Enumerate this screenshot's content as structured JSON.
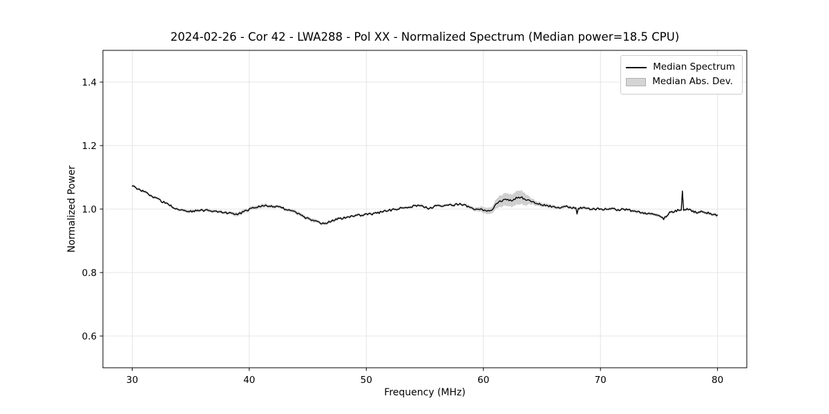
{
  "chart_data": {
    "type": "line",
    "title": "2024-02-26 - Cor 42 - LWA288 - Pol XX - Normalized Spectrum (Median power=18.5 CPU)",
    "xlabel": "Frequency (MHz)",
    "ylabel": "Normalized Power",
    "xlim": [
      27.5,
      82.5
    ],
    "ylim": [
      0.5,
      1.5
    ],
    "xticks": {
      "values": [
        30,
        40,
        50,
        60,
        70,
        80
      ],
      "labels": [
        "30",
        "40",
        "50",
        "60",
        "70",
        "80"
      ]
    },
    "yticks": {
      "values": [
        0.6,
        0.8,
        1.0,
        1.2,
        1.4
      ],
      "labels": [
        "0.6",
        "0.8",
        "1.0",
        "1.2",
        "1.4"
      ]
    },
    "grid": true,
    "background_color": "#ffffff",
    "grid_color": "#e4e4e4",
    "spine_color": "#000000",
    "legend": {
      "position": "upper right",
      "entries": [
        {
          "label": "Median Spectrum",
          "type": "line",
          "color": "#000000"
        },
        {
          "label": "Median Abs. Dev.",
          "type": "patch",
          "fill": "#d5d5d5",
          "edge": "#b0b0b0"
        }
      ]
    },
    "series": [
      {
        "name": "Median Spectrum",
        "color": "#000000",
        "band_name": "Median Abs. Dev.",
        "band_color": "#cfcfcf",
        "noise_amplitude": 0.0032,
        "points_format": "[frequency_MHz, normalized_power, median_abs_dev]",
        "points": [
          [
            30.0,
            1.072,
            0.004
          ],
          [
            30.3,
            1.068,
            0.004
          ],
          [
            30.6,
            1.062,
            0.004
          ],
          [
            31.0,
            1.055,
            0.004
          ],
          [
            31.5,
            1.045,
            0.004
          ],
          [
            32.0,
            1.035,
            0.004
          ],
          [
            32.5,
            1.025,
            0.004
          ],
          [
            33.0,
            1.016,
            0.004
          ],
          [
            33.5,
            1.006,
            0.004
          ],
          [
            34.0,
            0.998,
            0.004
          ],
          [
            34.5,
            0.994,
            0.005
          ],
          [
            35.0,
            0.993,
            0.005
          ],
          [
            35.5,
            0.995,
            0.005
          ],
          [
            36.0,
            0.996,
            0.005
          ],
          [
            36.5,
            0.995,
            0.005
          ],
          [
            37.0,
            0.993,
            0.005
          ],
          [
            37.5,
            0.991,
            0.005
          ],
          [
            38.0,
            0.989,
            0.005
          ],
          [
            38.3,
            0.987,
            0.005
          ],
          [
            38.7,
            0.984,
            0.006
          ],
          [
            39.0,
            0.983,
            0.006
          ],
          [
            39.5,
            0.991,
            0.006
          ],
          [
            40.0,
            0.999,
            0.006
          ],
          [
            40.5,
            1.006,
            0.006
          ],
          [
            41.0,
            1.01,
            0.006
          ],
          [
            41.5,
            1.011,
            0.006
          ],
          [
            42.0,
            1.009,
            0.005
          ],
          [
            42.5,
            1.006,
            0.005
          ],
          [
            43.0,
            1.001,
            0.005
          ],
          [
            43.5,
            0.997,
            0.005
          ],
          [
            44.0,
            0.988,
            0.006
          ],
          [
            44.5,
            0.978,
            0.006
          ],
          [
            45.0,
            0.97,
            0.006
          ],
          [
            45.5,
            0.963,
            0.006
          ],
          [
            46.0,
            0.956,
            0.005
          ],
          [
            46.3,
            0.954,
            0.005
          ],
          [
            46.6,
            0.957,
            0.005
          ],
          [
            47.0,
            0.962,
            0.005
          ],
          [
            47.5,
            0.968,
            0.005
          ],
          [
            48.0,
            0.972,
            0.004
          ],
          [
            48.5,
            0.976,
            0.004
          ],
          [
            49.0,
            0.979,
            0.004
          ],
          [
            49.5,
            0.981,
            0.004
          ],
          [
            50.0,
            0.983,
            0.004
          ],
          [
            50.5,
            0.985,
            0.004
          ],
          [
            51.0,
            0.988,
            0.004
          ],
          [
            51.5,
            0.992,
            0.004
          ],
          [
            52.0,
            0.996,
            0.004
          ],
          [
            52.5,
            0.999,
            0.004
          ],
          [
            53.0,
            1.003,
            0.004
          ],
          [
            53.5,
            1.006,
            0.004
          ],
          [
            54.0,
            1.009,
            0.004
          ],
          [
            54.5,
            1.011,
            0.004
          ],
          [
            55.0,
            1.007,
            0.004
          ],
          [
            55.3,
            1.0,
            0.004
          ],
          [
            55.7,
            1.007,
            0.004
          ],
          [
            56.0,
            1.01,
            0.004
          ],
          [
            56.5,
            1.008,
            0.004
          ],
          [
            57.0,
            1.011,
            0.004
          ],
          [
            57.5,
            1.013,
            0.004
          ],
          [
            58.0,
            1.016,
            0.004
          ],
          [
            58.4,
            1.012,
            0.004
          ],
          [
            58.8,
            1.006,
            0.005
          ],
          [
            59.2,
            0.999,
            0.006
          ],
          [
            59.6,
            1.002,
            0.007
          ],
          [
            60.0,
            0.998,
            0.009
          ],
          [
            60.4,
            0.993,
            0.01
          ],
          [
            60.7,
            0.996,
            0.01
          ],
          [
            61.0,
            1.013,
            0.014
          ],
          [
            61.3,
            1.022,
            0.017
          ],
          [
            61.6,
            1.027,
            0.019
          ],
          [
            62.0,
            1.03,
            0.02
          ],
          [
            62.4,
            1.028,
            0.02
          ],
          [
            62.8,
            1.034,
            0.021
          ],
          [
            63.2,
            1.037,
            0.022
          ],
          [
            63.5,
            1.032,
            0.02
          ],
          [
            63.8,
            1.027,
            0.014
          ],
          [
            64.2,
            1.022,
            0.009
          ],
          [
            64.6,
            1.017,
            0.007
          ],
          [
            65.0,
            1.013,
            0.006
          ],
          [
            65.5,
            1.01,
            0.006
          ],
          [
            66.0,
            1.008,
            0.005
          ],
          [
            66.5,
            1.006,
            0.005
          ],
          [
            67.0,
            1.009,
            0.005
          ],
          [
            67.5,
            1.006,
            0.005
          ],
          [
            67.9,
            1.002,
            0.005
          ],
          [
            68.0,
            0.983,
            0.005
          ],
          [
            68.1,
            1.004,
            0.005
          ],
          [
            68.5,
            1.003,
            0.005
          ],
          [
            69.0,
            1.001,
            0.004
          ],
          [
            69.5,
            1.0,
            0.004
          ],
          [
            70.0,
            1.001,
            0.004
          ],
          [
            70.5,
            0.999,
            0.004
          ],
          [
            71.0,
            1.0,
            0.004
          ],
          [
            71.5,
            0.998,
            0.004
          ],
          [
            72.0,
            0.999,
            0.004
          ],
          [
            72.5,
            0.996,
            0.004
          ],
          [
            73.0,
            0.993,
            0.005
          ],
          [
            73.5,
            0.99,
            0.005
          ],
          [
            74.0,
            0.987,
            0.005
          ],
          [
            74.5,
            0.986,
            0.005
          ],
          [
            75.0,
            0.982,
            0.005
          ],
          [
            75.4,
            0.969,
            0.005
          ],
          [
            75.8,
            0.986,
            0.005
          ],
          [
            76.2,
            0.992,
            0.004
          ],
          [
            76.6,
            0.996,
            0.004
          ],
          [
            76.9,
            0.999,
            0.004
          ],
          [
            77.0,
            1.055,
            0.003
          ],
          [
            77.1,
            0.998,
            0.004
          ],
          [
            77.4,
            1.001,
            0.004
          ],
          [
            77.8,
            0.994,
            0.005
          ],
          [
            78.2,
            0.99,
            0.005
          ],
          [
            78.6,
            0.992,
            0.005
          ],
          [
            79.0,
            0.988,
            0.005
          ],
          [
            79.4,
            0.986,
            0.005
          ],
          [
            79.7,
            0.983,
            0.005
          ],
          [
            80.0,
            0.978,
            0.005
          ]
        ]
      }
    ]
  }
}
